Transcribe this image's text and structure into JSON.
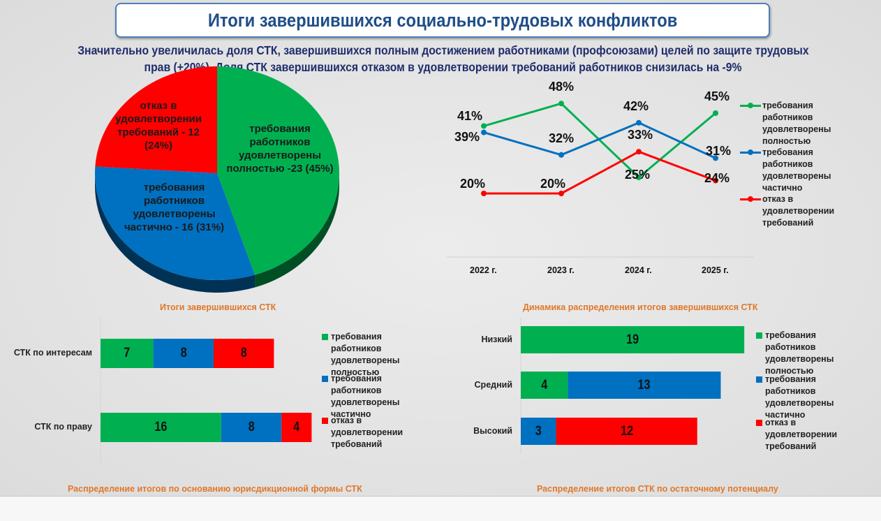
{
  "header": {
    "title": "Итоги завершившихся социально-трудовых конфликтов",
    "subtitle_line1": "Значительно увеличилась доля СТК, завершившихся полным достижением работниками (профсоюзами) целей по защите трудовых",
    "subtitle_line2": "прав (+20%). Доля СТК завершившихся отказом в удовлетворении требований работников снизилась на -9%"
  },
  "colors": {
    "green": "#00b050",
    "blue": "#0070c0",
    "red": "#ff0000",
    "caption": "#e0782a",
    "title": "#1f4e87"
  },
  "chart_data": [
    {
      "type": "pie",
      "title": "Итоги завершившихся СТК",
      "slices": [
        {
          "name": "требования работников удовлетворены полностью",
          "value": 23,
          "percent": 45,
          "label_lines": [
            "требования",
            "работников",
            "удовлетворены",
            "полностью -23 (45%)"
          ],
          "color": "#00b050"
        },
        {
          "name": "требования работников удовлетворены частично",
          "value": 16,
          "percent": 31,
          "label_lines": [
            "требования",
            "работников",
            "удовлетворены",
            "частично - 16 (31%)"
          ],
          "color": "#0070c0"
        },
        {
          "name": "отказ в удовлетворении требований",
          "value": 12,
          "percent": 24,
          "label_lines": [
            "отказ в",
            "удовлетворении",
            "требований - 12",
            "(24%)"
          ],
          "color": "#ff0000"
        }
      ]
    },
    {
      "type": "line",
      "title": "Динамика распределения итогов завершившихся СТК",
      "categories": [
        "2022 г.",
        "2023 г.",
        "2024 г.",
        "2025 г."
      ],
      "ylim": [
        0,
        50
      ],
      "grid": false,
      "legend_position": "right",
      "series": [
        {
          "name": "требования работников удовлетворены полностью",
          "legend_lines": [
            "требования работников",
            "удовлетворены",
            "полностью"
          ],
          "values": [
            41,
            48,
            25,
            45
          ],
          "labels": [
            "41%",
            "48%",
            "25%",
            "45%"
          ],
          "color": "#00b050"
        },
        {
          "name": "требования работников удовлетворены частично",
          "legend_lines": [
            "требования работников",
            "удовлетворены частично"
          ],
          "values": [
            39,
            32,
            42,
            31
          ],
          "labels": [
            "39%",
            "32%",
            "42%",
            "31%"
          ],
          "color": "#0070c0"
        },
        {
          "name": "отказ в удовлетворении требований",
          "legend_lines": [
            "отказ в удовлетворении",
            "требований"
          ],
          "values": [
            20,
            20,
            33,
            24
          ],
          "labels": [
            "20%",
            "20%",
            "33%",
            "24%"
          ],
          "color": "#ff0000"
        }
      ]
    },
    {
      "type": "bar",
      "orientation": "horizontal",
      "stacked": true,
      "title": "Распределение итогов по основанию юрисдикционной формы СТК",
      "categories": [
        "СТК по интересам",
        "СТК по праву"
      ],
      "legend_position": "right",
      "series": [
        {
          "name": "требования работников удовлетворены полностью",
          "legend_lines": [
            "требования работников",
            "удовлетворены",
            "полностью"
          ],
          "values": [
            7,
            16
          ],
          "color": "#00b050"
        },
        {
          "name": "требования работников удовлетворены частично",
          "legend_lines": [
            "требования работников",
            "удовлетворены",
            "частично"
          ],
          "values": [
            8,
            8
          ],
          "color": "#0070c0"
        },
        {
          "name": "отказ в удовлетворении требований",
          "legend_lines": [
            "отказ в удовлетворении",
            "требований"
          ],
          "values": [
            8,
            4
          ],
          "color": "#ff0000"
        }
      ]
    },
    {
      "type": "bar",
      "orientation": "horizontal",
      "stacked": true,
      "title": "Распределение итогов СТК по остаточному потенциалу",
      "categories": [
        "Низкий",
        "Средний",
        "Высокий"
      ],
      "legend_position": "right",
      "series": [
        {
          "name": "требования работников удовлетворены полностью",
          "legend_lines": [
            "требования работников",
            "удовлетворены",
            "полностью"
          ],
          "values": [
            19,
            4,
            0
          ],
          "color": "#00b050"
        },
        {
          "name": "требования работников удовлетворены частично",
          "legend_lines": [
            "требования работников",
            "удовлетворены частично"
          ],
          "values": [
            0,
            13,
            3
          ],
          "color": "#0070c0"
        },
        {
          "name": "отказ в удовлетворении требований",
          "legend_lines": [
            "отказ в удовлетворении",
            "требований"
          ],
          "values": [
            0,
            0,
            12
          ],
          "color": "#ff0000"
        }
      ]
    }
  ]
}
